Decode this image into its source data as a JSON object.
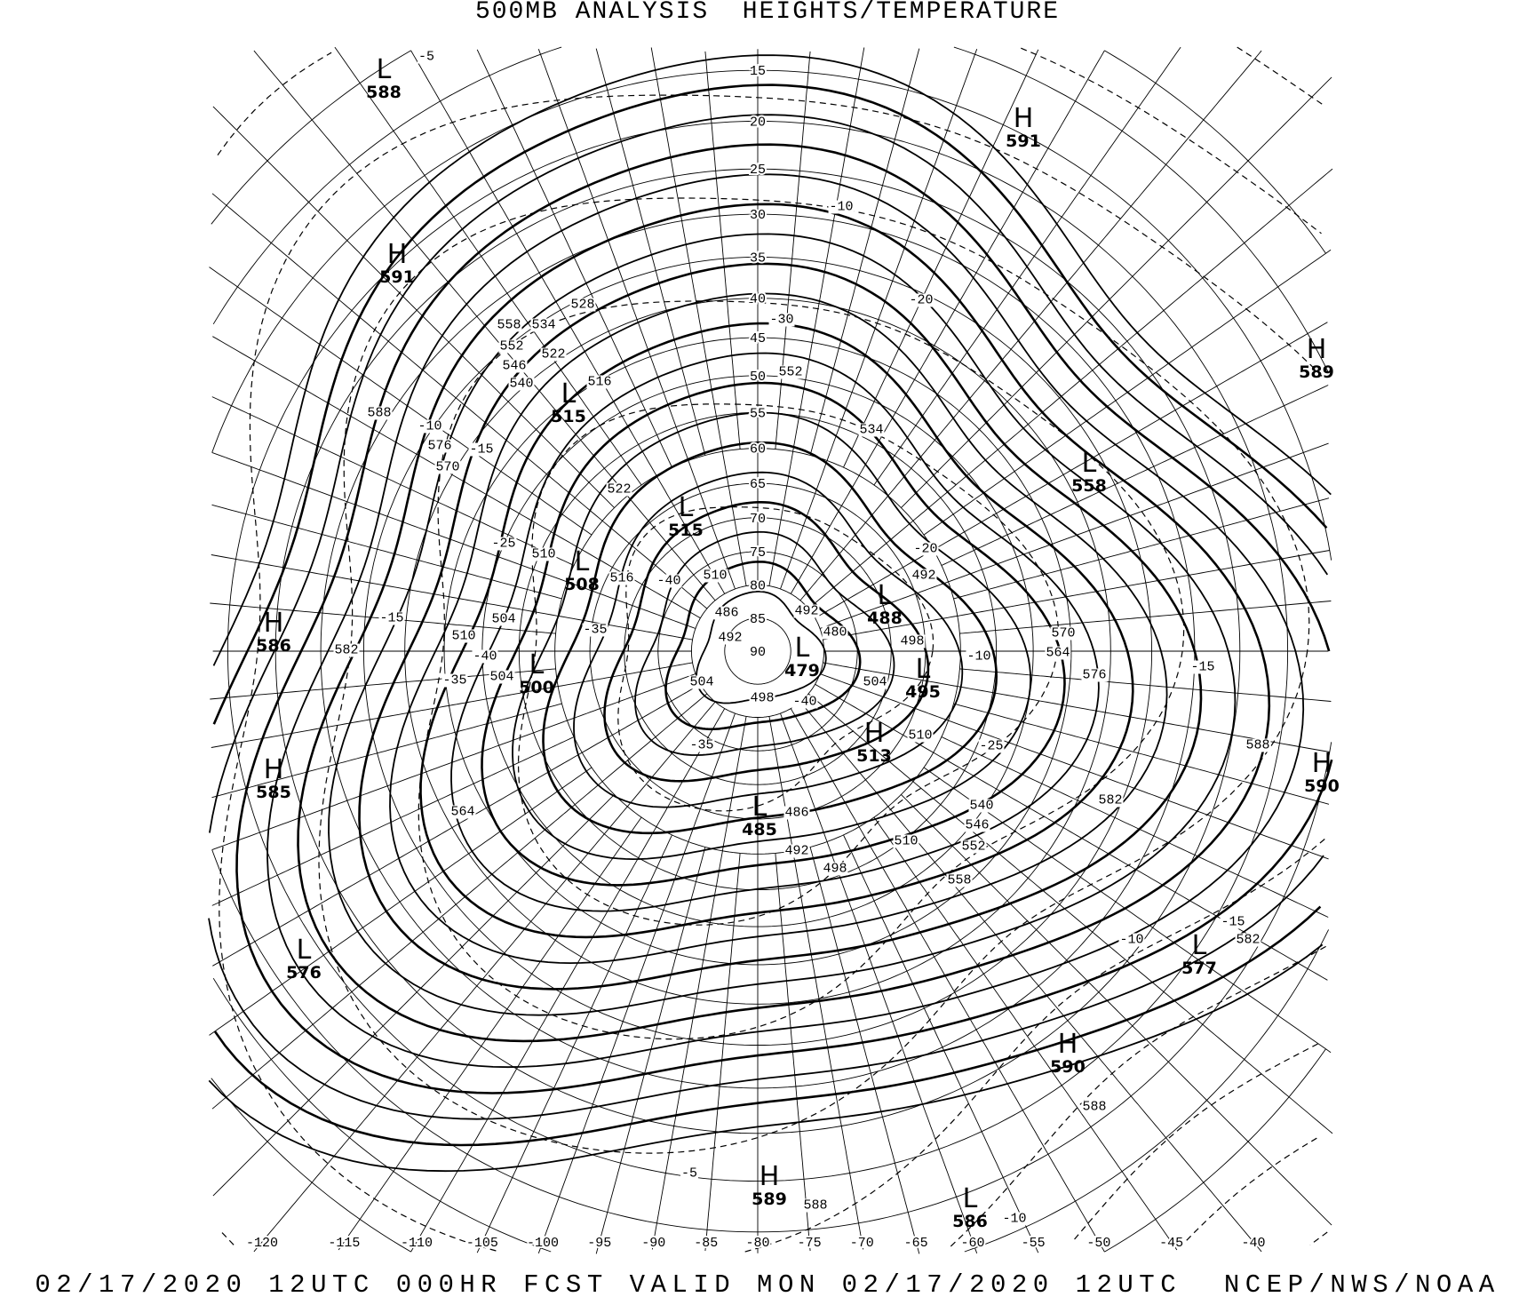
{
  "header": {
    "title": "500MB ANALYSIS  HEIGHTS/TEMPERATURE"
  },
  "footer": {
    "text": "02/17/2020 12UTC 000HR FCST VALID MON 02/17/2020 12UTC  NCEP/NWS/NOAA"
  },
  "map": {
    "projection": "polar stereographic",
    "latitude_labels": [
      "15",
      "20",
      "25",
      "30",
      "35",
      "40",
      "45",
      "50",
      "55",
      "60",
      "65",
      "70",
      "75",
      "80",
      "85",
      "90"
    ],
    "longitude_labels": [
      "-120",
      "-115",
      "-110",
      "-105",
      "-100",
      "-95",
      "-90",
      "-85",
      "-80",
      "-75",
      "-70",
      "-65",
      "-60",
      "-55",
      "-50",
      "-45",
      "-40"
    ],
    "height_contour_interval_dam": 6,
    "pressure_centers": [
      {
        "type": "L",
        "value": "588"
      },
      {
        "type": "H",
        "value": "591"
      },
      {
        "type": "H",
        "value": "591"
      },
      {
        "type": "H",
        "value": "589"
      },
      {
        "type": "L",
        "value": "515"
      },
      {
        "type": "L",
        "value": "558"
      },
      {
        "type": "L",
        "value": "515"
      },
      {
        "type": "L",
        "value": "508"
      },
      {
        "type": "H",
        "value": "586"
      },
      {
        "type": "L",
        "value": "488"
      },
      {
        "type": "L",
        "value": "479"
      },
      {
        "type": "L",
        "value": "500"
      },
      {
        "type": "L",
        "value": "495"
      },
      {
        "type": "H",
        "value": "513"
      },
      {
        "type": "H",
        "value": "585"
      },
      {
        "type": "H",
        "value": "590"
      },
      {
        "type": "L",
        "value": "485"
      },
      {
        "type": "L",
        "value": "576"
      },
      {
        "type": "L",
        "value": "577"
      },
      {
        "type": "H",
        "value": "590"
      },
      {
        "type": "H",
        "value": "589"
      },
      {
        "type": "L",
        "value": "586"
      }
    ],
    "height_labels": [
      "588",
      "576",
      "570",
      "558",
      "552",
      "546",
      "540",
      "534",
      "528",
      "522",
      "516",
      "522",
      "516",
      "510",
      "510",
      "504",
      "510",
      "504",
      "534",
      "552",
      "492",
      "486",
      "492",
      "498",
      "480",
      "504",
      "504",
      "498",
      "492",
      "510",
      "486",
      "492",
      "498",
      "510",
      "540",
      "546",
      "552",
      "558",
      "570",
      "564",
      "576",
      "582",
      "588",
      "582",
      "588",
      "582",
      "564",
      "588"
    ],
    "temperature_labels": [
      "-5",
      "-10",
      "-20",
      "-30",
      "-10",
      "-15",
      "-25",
      "-35",
      "-40",
      "-40",
      "-35",
      "-15",
      "-40",
      "-35",
      "-20",
      "-10",
      "-25",
      "-15",
      "-10",
      "-15",
      "-10",
      "-5"
    ]
  }
}
